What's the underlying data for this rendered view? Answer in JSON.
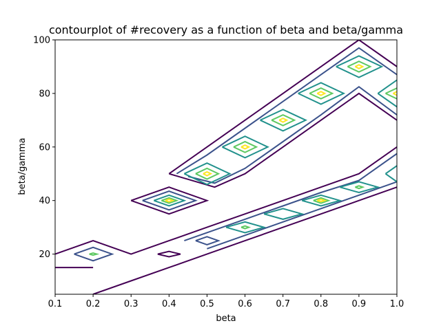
{
  "chart_data": {
    "type": "contour",
    "title": "contourplot of #recovery as a function of beta and beta/gamma",
    "xlabel": "beta",
    "ylabel": "beta/gamma",
    "xlim": [
      0.1,
      1.0
    ],
    "ylim": [
      5,
      100
    ],
    "xticks": [
      0.1,
      0.2,
      0.3,
      0.4,
      0.5,
      0.6,
      0.7,
      0.8,
      0.9,
      1.0
    ],
    "xtick_labels": [
      "0.1",
      "0.2",
      "0.3",
      "0.4",
      "0.5",
      "0.6",
      "0.7",
      "0.8",
      "0.9",
      "1.0"
    ],
    "yticks": [
      20,
      40,
      60,
      80,
      100
    ],
    "ytick_labels": [
      "20",
      "40",
      "60",
      "80",
      "100"
    ],
    "grid": false,
    "colormap": "viridis",
    "level_colors": [
      "#440154",
      "#3b528b",
      "#21918c",
      "#5ec962",
      "#fde725"
    ],
    "contours": [
      {
        "level": 0,
        "paths": [
          [
            [
              0.1,
              20
            ],
            [
              0.2,
              25
            ],
            [
              0.3,
              20
            ],
            [
              0.4,
              25
            ],
            [
              0.5,
              30
            ],
            [
              0.6,
              35
            ],
            [
              0.7,
              40
            ],
            [
              0.8,
              45
            ],
            [
              0.9,
              50
            ],
            [
              1.0,
              60
            ]
          ],
          [
            [
              0.2,
              5
            ],
            [
              0.3,
              10
            ],
            [
              0.4,
              15
            ],
            [
              0.5,
              20
            ],
            [
              0.6,
              25
            ],
            [
              0.7,
              30
            ],
            [
              0.8,
              35
            ],
            [
              0.9,
              40
            ],
            [
              1.0,
              45
            ]
          ],
          [
            [
              0.1,
              15
            ],
            [
              0.2,
              15
            ]
          ],
          [
            [
              0.4,
              50
            ],
            [
              0.5,
              60
            ],
            [
              0.6,
              70
            ],
            [
              0.7,
              80
            ],
            [
              0.8,
              90
            ],
            [
              0.9,
              100
            ],
            [
              1.0,
              90
            ]
          ],
          [
            [
              0.4,
              50
            ],
            [
              0.52,
              45
            ],
            [
              0.6,
              50
            ],
            [
              0.7,
              60
            ],
            [
              0.8,
              70
            ],
            [
              0.9,
              80
            ],
            [
              1.0,
              70
            ]
          ],
          [
            [
              0.3,
              40
            ],
            [
              0.4,
              45
            ],
            [
              0.5,
              40
            ],
            [
              0.4,
              35
            ],
            [
              0.3,
              40
            ]
          ],
          [
            [
              0.37,
              20
            ],
            [
              0.4,
              21
            ],
            [
              0.43,
              20
            ],
            [
              0.4,
              19
            ],
            [
              0.37,
              20
            ]
          ]
        ]
      },
      {
        "level": 1,
        "paths": [
          [
            [
              0.15,
              20
            ],
            [
              0.2,
              22.5
            ],
            [
              0.25,
              20
            ],
            [
              0.2,
              17.5
            ],
            [
              0.15,
              20
            ]
          ],
          [
            [
              0.33,
              40
            ],
            [
              0.4,
              43.5
            ],
            [
              0.47,
              40
            ],
            [
              0.4,
              36.5
            ],
            [
              0.33,
              40
            ]
          ],
          [
            [
              0.44,
              25
            ],
            [
              0.5,
              28
            ],
            [
              0.6,
              33
            ],
            [
              0.7,
              38
            ],
            [
              0.8,
              43
            ],
            [
              0.9,
              47.5
            ],
            [
              1.0,
              57.5
            ]
          ],
          [
            [
              0.5,
              22
            ],
            [
              0.6,
              27
            ],
            [
              0.7,
              32
            ],
            [
              0.8,
              37
            ],
            [
              0.9,
              42
            ],
            [
              1.0,
              47
            ]
          ],
          [
            [
              0.42,
              50
            ],
            [
              0.5,
              57
            ],
            [
              0.6,
              67
            ],
            [
              0.7,
              77
            ],
            [
              0.8,
              87
            ],
            [
              0.9,
              97
            ],
            [
              1.0,
              87
            ]
          ],
          [
            [
              0.45,
              49
            ],
            [
              0.52,
              46.5
            ],
            [
              0.6,
              52
            ],
            [
              0.7,
              62
            ],
            [
              0.8,
              72
            ],
            [
              0.9,
              82.5
            ],
            [
              1.0,
              72
            ]
          ],
          [
            [
              0.47,
              25
            ],
            [
              0.5,
              26.5
            ],
            [
              0.53,
              25
            ],
            [
              0.5,
              23.5
            ],
            [
              0.47,
              25
            ]
          ]
        ]
      },
      {
        "level": 2,
        "paths": [
          [
            [
              0.36,
              40
            ],
            [
              0.4,
              42
            ],
            [
              0.44,
              40
            ],
            [
              0.4,
              38
            ],
            [
              0.36,
              40
            ]
          ],
          [
            [
              0.44,
              50
            ],
            [
              0.5,
              54
            ],
            [
              0.56,
              50
            ],
            [
              0.5,
              46
            ],
            [
              0.44,
              50
            ]
          ],
          [
            [
              0.54,
              60
            ],
            [
              0.6,
              64
            ],
            [
              0.66,
              60
            ],
            [
              0.6,
              56
            ],
            [
              0.54,
              60
            ]
          ],
          [
            [
              0.64,
              70
            ],
            [
              0.7,
              74
            ],
            [
              0.76,
              70
            ],
            [
              0.7,
              66
            ],
            [
              0.64,
              70
            ]
          ],
          [
            [
              0.74,
              80
            ],
            [
              0.8,
              84
            ],
            [
              0.86,
              80
            ],
            [
              0.8,
              76
            ],
            [
              0.74,
              80
            ]
          ],
          [
            [
              0.84,
              90
            ],
            [
              0.9,
              94
            ],
            [
              0.96,
              90
            ],
            [
              0.9,
              86
            ],
            [
              0.84,
              90
            ]
          ],
          [
            [
              0.95,
              80
            ],
            [
              1.0,
              85
            ]
          ],
          [
            [
              0.95,
              80
            ],
            [
              1.0,
              75
            ]
          ],
          [
            [
              0.55,
              30
            ],
            [
              0.6,
              32
            ],
            [
              0.65,
              30
            ],
            [
              0.6,
              28
            ],
            [
              0.55,
              30
            ]
          ],
          [
            [
              0.65,
              35
            ],
            [
              0.7,
              37
            ],
            [
              0.75,
              35
            ],
            [
              0.7,
              33
            ],
            [
              0.65,
              35
            ]
          ],
          [
            [
              0.75,
              40
            ],
            [
              0.8,
              42
            ],
            [
              0.85,
              40
            ],
            [
              0.8,
              38
            ],
            [
              0.75,
              40
            ]
          ],
          [
            [
              0.85,
              45
            ],
            [
              0.9,
              47
            ],
            [
              0.95,
              45
            ],
            [
              0.9,
              43
            ],
            [
              0.85,
              45
            ]
          ],
          [
            [
              0.97,
              50
            ],
            [
              1.0,
              53
            ]
          ],
          [
            [
              0.97,
              50
            ],
            [
              1.0,
              47
            ]
          ]
        ]
      },
      {
        "level": 3,
        "paths": [
          [
            [
              0.38,
              40
            ],
            [
              0.4,
              41
            ],
            [
              0.42,
              40
            ],
            [
              0.4,
              39
            ],
            [
              0.38,
              40
            ]
          ],
          [
            [
              0.47,
              50
            ],
            [
              0.5,
              52
            ],
            [
              0.53,
              50
            ],
            [
              0.5,
              48
            ],
            [
              0.47,
              50
            ]
          ],
          [
            [
              0.57,
              60
            ],
            [
              0.6,
              62
            ],
            [
              0.63,
              60
            ],
            [
              0.6,
              58
            ],
            [
              0.57,
              60
            ]
          ],
          [
            [
              0.67,
              70
            ],
            [
              0.7,
              72
            ],
            [
              0.73,
              70
            ],
            [
              0.7,
              68
            ],
            [
              0.67,
              70
            ]
          ],
          [
            [
              0.77,
              80
            ],
            [
              0.8,
              82
            ],
            [
              0.83,
              80
            ],
            [
              0.8,
              78
            ],
            [
              0.77,
              80
            ]
          ],
          [
            [
              0.87,
              90
            ],
            [
              0.9,
              92
            ],
            [
              0.93,
              90
            ],
            [
              0.9,
              88
            ],
            [
              0.87,
              90
            ]
          ],
          [
            [
              0.97,
              80
            ],
            [
              1.0,
              82
            ]
          ],
          [
            [
              0.97,
              80
            ],
            [
              1.0,
              78
            ]
          ],
          [
            [
              0.78,
              40
            ],
            [
              0.8,
              41
            ],
            [
              0.82,
              40
            ],
            [
              0.8,
              39
            ],
            [
              0.78,
              40
            ]
          ],
          [
            [
              0.89,
              45
            ],
            [
              0.9,
              45.5
            ],
            [
              0.91,
              45
            ],
            [
              0.9,
              44.5
            ],
            [
              0.89,
              45
            ]
          ],
          [
            [
              0.59,
              30
            ],
            [
              0.6,
              30.5
            ],
            [
              0.61,
              30
            ],
            [
              0.6,
              29.5
            ],
            [
              0.59,
              30
            ]
          ],
          [
            [
              0.19,
              20
            ],
            [
              0.2,
              20.4
            ],
            [
              0.21,
              20
            ],
            [
              0.2,
              19.6
            ],
            [
              0.19,
              20
            ]
          ]
        ]
      },
      {
        "level": 4,
        "paths": [
          [
            [
              0.49,
              50
            ],
            [
              0.5,
              50.7
            ],
            [
              0.51,
              50
            ],
            [
              0.5,
              49.3
            ],
            [
              0.49,
              50
            ]
          ],
          [
            [
              0.59,
              60
            ],
            [
              0.6,
              60.7
            ],
            [
              0.61,
              60
            ],
            [
              0.6,
              59.3
            ],
            [
              0.59,
              60
            ]
          ],
          [
            [
              0.69,
              70
            ],
            [
              0.7,
              70.7
            ],
            [
              0.71,
              70
            ],
            [
              0.7,
              69.3
            ],
            [
              0.69,
              70
            ]
          ],
          [
            [
              0.79,
              80
            ],
            [
              0.8,
              80.7
            ],
            [
              0.81,
              80
            ],
            [
              0.8,
              79.3
            ],
            [
              0.79,
              80
            ]
          ],
          [
            [
              0.89,
              90
            ],
            [
              0.9,
              90.7
            ],
            [
              0.91,
              90
            ],
            [
              0.9,
              89.3
            ],
            [
              0.89,
              90
            ]
          ],
          [
            [
              0.99,
              80
            ],
            [
              1.0,
              80.7
            ]
          ],
          [
            [
              0.99,
              80
            ],
            [
              1.0,
              79.3
            ]
          ],
          [
            [
              0.39,
              40
            ],
            [
              0.4,
              40.5
            ],
            [
              0.41,
              40
            ],
            [
              0.4,
              39.5
            ],
            [
              0.39,
              40
            ]
          ],
          [
            [
              0.79,
              40
            ],
            [
              0.8,
              40.4
            ],
            [
              0.81,
              40
            ],
            [
              0.8,
              39.6
            ],
            [
              0.79,
              40
            ]
          ]
        ]
      }
    ]
  }
}
